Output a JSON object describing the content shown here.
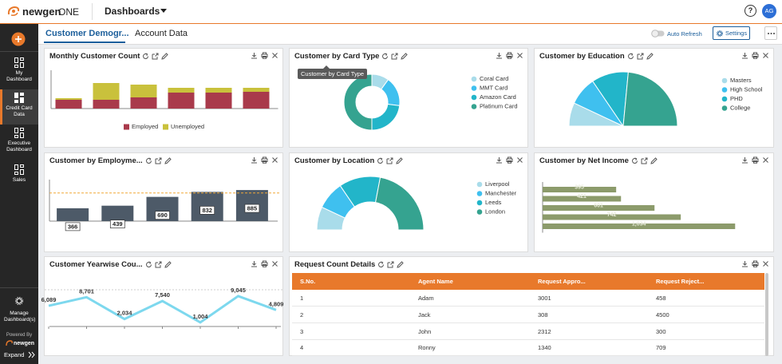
{
  "header": {
    "logo": "newgen",
    "logo_suffix": "ONE",
    "title": "Dashboards",
    "help": "?",
    "avatar": "AG"
  },
  "sidebar": {
    "items": [
      "My Dashboard",
      "Credit Card Data",
      "Executive Dashboard",
      "Sales"
    ],
    "active": 1,
    "manage": "Manage Dashboard(s)",
    "powered_by": "Powered By",
    "brand": "newgen",
    "expand": "Expand"
  },
  "tabs": {
    "items": [
      "Customer Demogr...",
      "Account Data"
    ],
    "active": 0
  },
  "toolbar": {
    "auto_refresh": "Auto Refresh",
    "settings": "Settings"
  },
  "widgets": [
    {
      "title": "Monthly Customer Count",
      "chart_data": {
        "type": "bar",
        "stacked": true,
        "ylim": [
          0,
          40
        ],
        "series": [
          {
            "name": "Employed",
            "color": "#a93a4b",
            "values": [
              11,
              11,
              14,
              20,
              20,
              21
            ]
          },
          {
            "name": "Unemployed",
            "color": "#c9c13c",
            "values": [
              2,
              21,
              16,
              6,
              6,
              5
            ]
          }
        ]
      }
    },
    {
      "title": "Customer by Card Type",
      "tooltip": "Customer by Card Type",
      "chart_data": {
        "type": "pie",
        "donut": true,
        "half": false,
        "categories": [
          "Coral Card",
          "MMT Card",
          "Amazon Card",
          "Platinum Card"
        ],
        "values": [
          10,
          17,
          23,
          50
        ],
        "colors": [
          "#a9dcea",
          "#3fc0ef",
          "#22b5c9",
          "#35a390"
        ]
      }
    },
    {
      "title": "Customer by Education",
      "chart_data": {
        "type": "pie",
        "donut": false,
        "half": true,
        "categories": [
          "Masters",
          "High School",
          "PHD",
          "College"
        ],
        "values": [
          14,
          17,
          22,
          47
        ],
        "colors": [
          "#a9dcea",
          "#3fc0ef",
          "#22b5c9",
          "#35a390"
        ]
      }
    },
    {
      "title": "Customer by Employme...",
      "chart_data": {
        "type": "bar",
        "values": [
          366,
          439,
          690,
          832,
          885
        ],
        "color": "#4d5a68",
        "data_labels": true,
        "ylim": [
          0,
          1000
        ],
        "reference_line": 800,
        "reference_color": "#f0a838"
      }
    },
    {
      "title": "Customer by Location",
      "chart_data": {
        "type": "pie",
        "donut": true,
        "half": true,
        "categories": [
          "Liverpool",
          "Manchester",
          "Leeds",
          "London"
        ],
        "values": [
          14,
          17,
          25,
          44
        ],
        "colors": [
          "#a9dcea",
          "#3fc0ef",
          "#22b5c9",
          "#35a390"
        ]
      }
    },
    {
      "title": "Customer by Net Income",
      "chart_data": {
        "type": "hbar",
        "values": [
          395,
          421,
          601,
          742,
          1034
        ],
        "value_labels": [
          "395",
          "421",
          "601",
          "742",
          "1,034"
        ],
        "color": "#8c9b6b",
        "xlim": [
          0,
          1200
        ]
      }
    },
    {
      "title": "Customer Yearwise Cou...",
      "chart_data": {
        "type": "line",
        "values": [
          6089,
          8701,
          2034,
          7540,
          1004,
          9045,
          4809
        ],
        "value_labels": [
          "6,089",
          "8,701",
          "2,034",
          "7,540",
          "1,004",
          "9,045",
          "4,809"
        ],
        "color": "#7dd8ee",
        "ylim": [
          0,
          10000
        ]
      }
    }
  ],
  "table": {
    "title": "Request Count Details",
    "columns": [
      "S.No.",
      "Agent Name",
      "Request Appro...",
      "Request Reject..."
    ],
    "rows": [
      [
        1,
        "Adam",
        3001,
        458
      ],
      [
        2,
        "Jack",
        308,
        4500
      ],
      [
        3,
        "John",
        2312,
        300
      ],
      [
        4,
        "Ronny",
        1340,
        709
      ]
    ]
  }
}
